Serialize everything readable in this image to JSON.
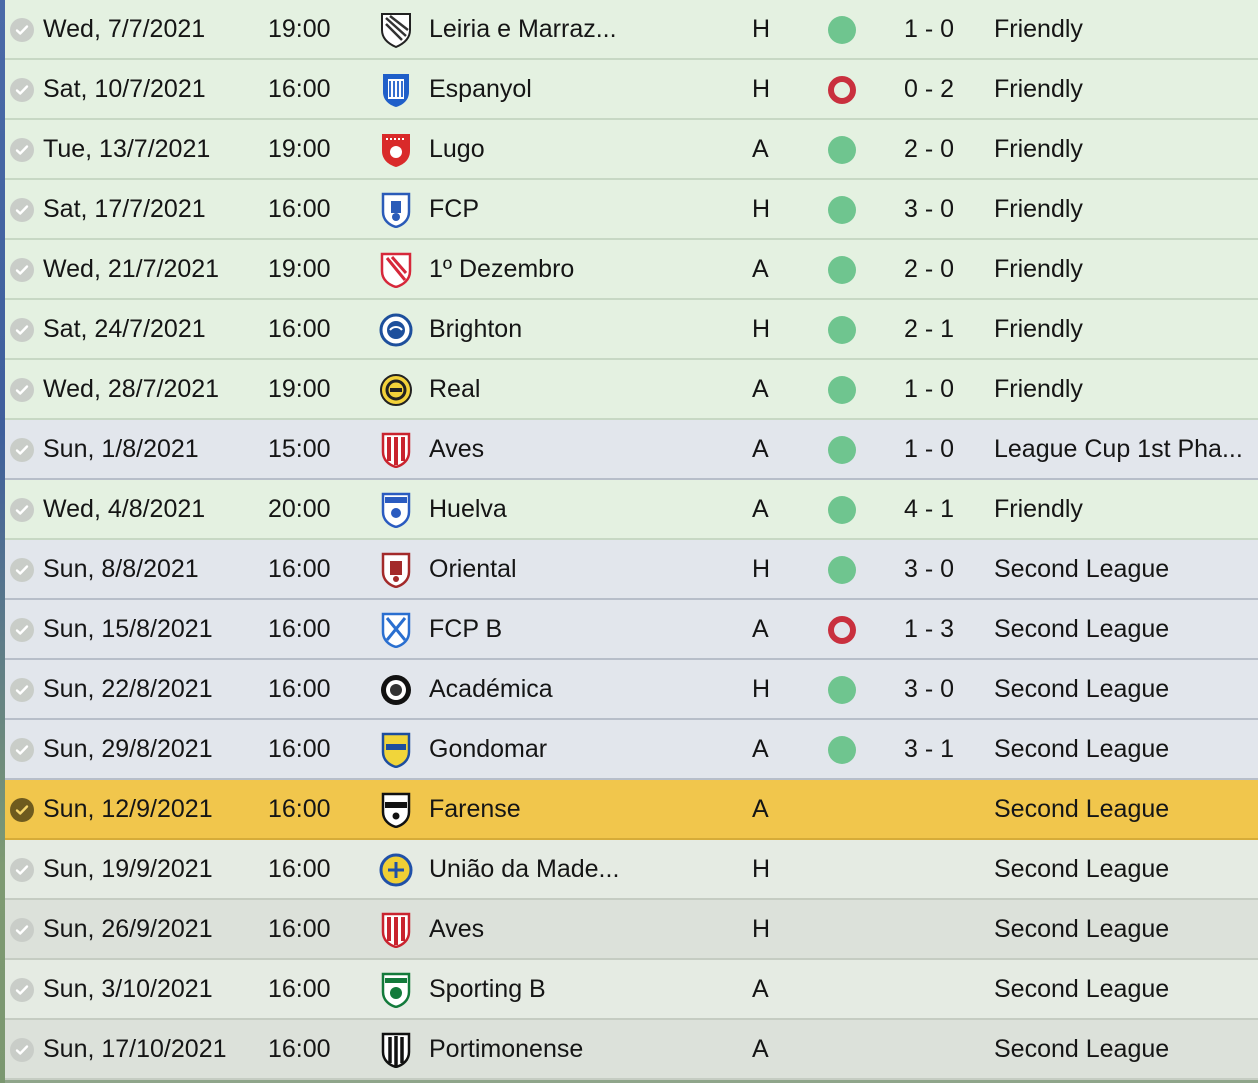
{
  "fixtures": [
    {
      "date": "Wed, 7/7/2021",
      "time": "19:00",
      "team": "Leiria e Marraz...",
      "crest": "leiria",
      "venue": "H",
      "result": "win",
      "score": "1 - 0",
      "competition": "Friendly",
      "kind": "friendly"
    },
    {
      "date": "Sat, 10/7/2021",
      "time": "16:00",
      "team": "Espanyol",
      "crest": "espanyol",
      "venue": "H",
      "result": "loss",
      "score": "0 - 2",
      "competition": "Friendly",
      "kind": "friendly"
    },
    {
      "date": "Tue, 13/7/2021",
      "time": "19:00",
      "team": "Lugo",
      "crest": "lugo",
      "venue": "A",
      "result": "win",
      "score": "2 - 0",
      "competition": "Friendly",
      "kind": "friendly"
    },
    {
      "date": "Sat, 17/7/2021",
      "time": "16:00",
      "team": "FCP",
      "crest": "fcp",
      "venue": "H",
      "result": "win",
      "score": "3 - 0",
      "competition": "Friendly",
      "kind": "friendly"
    },
    {
      "date": "Wed, 21/7/2021",
      "time": "19:00",
      "team": "1º Dezembro",
      "crest": "dezembro",
      "venue": "A",
      "result": "win",
      "score": "2 - 0",
      "competition": "Friendly",
      "kind": "friendly"
    },
    {
      "date": "Sat, 24/7/2021",
      "time": "16:00",
      "team": "Brighton",
      "crest": "brighton",
      "venue": "H",
      "result": "win",
      "score": "2 - 1",
      "competition": "Friendly",
      "kind": "friendly"
    },
    {
      "date": "Wed, 28/7/2021",
      "time": "19:00",
      "team": "Real",
      "crest": "real",
      "venue": "A",
      "result": "win",
      "score": "1 - 0",
      "competition": "Friendly",
      "kind": "friendly"
    },
    {
      "date": "Sun, 1/8/2021",
      "time": "15:00",
      "team": "Aves",
      "crest": "aves",
      "venue": "A",
      "result": "win",
      "score": "1 - 0",
      "competition": "League Cup 1st Pha...",
      "kind": "comp"
    },
    {
      "date": "Wed, 4/8/2021",
      "time": "20:00",
      "team": "Huelva",
      "crest": "huelva",
      "venue": "A",
      "result": "win",
      "score": "4 - 1",
      "competition": "Friendly",
      "kind": "friendly"
    },
    {
      "date": "Sun, 8/8/2021",
      "time": "16:00",
      "team": "Oriental",
      "crest": "oriental",
      "venue": "H",
      "result": "win",
      "score": "3 - 0",
      "competition": "Second League",
      "kind": "comp"
    },
    {
      "date": "Sun, 15/8/2021",
      "time": "16:00",
      "team": "FCP B",
      "crest": "fcpb",
      "venue": "A",
      "result": "loss",
      "score": "1 - 3",
      "competition": "Second League",
      "kind": "comp"
    },
    {
      "date": "Sun, 22/8/2021",
      "time": "16:00",
      "team": "Académica",
      "crest": "academica",
      "venue": "H",
      "result": "win",
      "score": "3 - 0",
      "competition": "Second League",
      "kind": "comp"
    },
    {
      "date": "Sun, 29/8/2021",
      "time": "16:00",
      "team": "Gondomar",
      "crest": "gondomar",
      "venue": "A",
      "result": "win",
      "score": "3 - 1",
      "competition": "Second League",
      "kind": "comp"
    },
    {
      "date": "Sun, 12/9/2021",
      "time": "16:00",
      "team": "Farense",
      "crest": "farense",
      "venue": "A",
      "result": "",
      "score": "",
      "competition": "Second League",
      "kind": "current"
    },
    {
      "date": "Sun, 19/9/2021",
      "time": "16:00",
      "team": "União da Made...",
      "crest": "uniao",
      "venue": "H",
      "result": "",
      "score": "",
      "competition": "Second League",
      "kind": "future"
    },
    {
      "date": "Sun, 26/9/2021",
      "time": "16:00",
      "team": "Aves",
      "crest": "aves",
      "venue": "H",
      "result": "",
      "score": "",
      "competition": "Second League",
      "kind": "future alt"
    },
    {
      "date": "Sun, 3/10/2021",
      "time": "16:00",
      "team": "Sporting B",
      "crest": "sporting",
      "venue": "A",
      "result": "",
      "score": "",
      "competition": "Second League",
      "kind": "future"
    },
    {
      "date": "Sun, 17/10/2021",
      "time": "16:00",
      "team": "Portimonense",
      "crest": "portimonense",
      "venue": "A",
      "result": "",
      "score": "",
      "competition": "Second League",
      "kind": "future alt"
    }
  ]
}
